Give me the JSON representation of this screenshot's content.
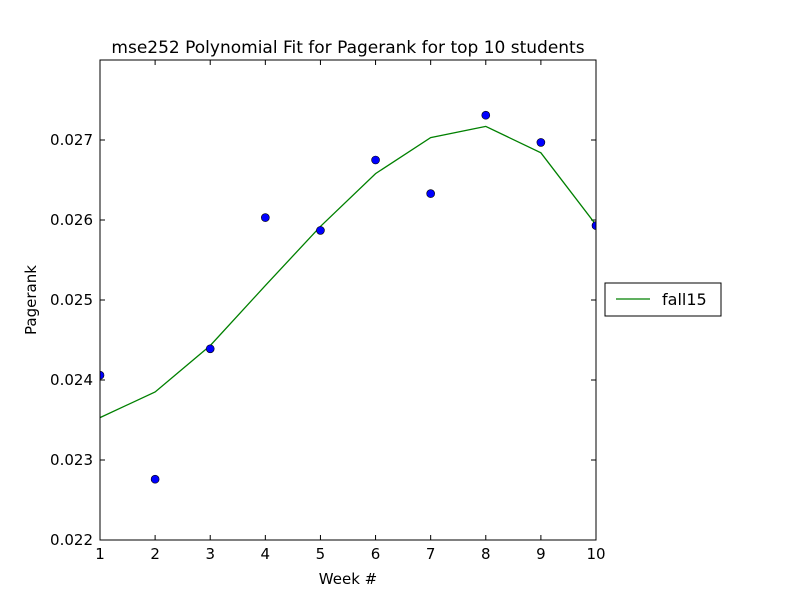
{
  "chart_data": {
    "type": "line",
    "title": "mse252 Polynomial Fit for Pagerank for top 10 students",
    "xlabel": "Week #",
    "ylabel": "Pagerank",
    "xlim": [
      1,
      10
    ],
    "ylim": [
      0.022,
      0.028
    ],
    "xticks": [
      "1",
      "2",
      "3",
      "4",
      "5",
      "6",
      "7",
      "8",
      "9",
      "10"
    ],
    "yticks": [
      "0.022",
      "0.023",
      "0.024",
      "0.025",
      "0.026",
      "0.027"
    ],
    "grid": false,
    "legend_position": "outside-right",
    "series": [
      {
        "name": "fall15",
        "kind": "line",
        "color": "#008000",
        "x": [
          1,
          2,
          3,
          4,
          5,
          6,
          7,
          8,
          9,
          10
        ],
        "y": [
          0.02353,
          0.02385,
          0.02443,
          0.02518,
          0.02592,
          0.02658,
          0.02703,
          0.02717,
          0.02684,
          0.02594
        ]
      },
      {
        "kind": "scatter",
        "color": "#0000ff",
        "x": [
          1,
          2,
          3,
          4,
          5,
          6,
          7,
          8,
          9,
          10
        ],
        "y": [
          0.02406,
          0.02276,
          0.02439,
          0.02603,
          0.02587,
          0.02675,
          0.02633,
          0.02731,
          0.02697,
          0.02593
        ]
      }
    ]
  }
}
